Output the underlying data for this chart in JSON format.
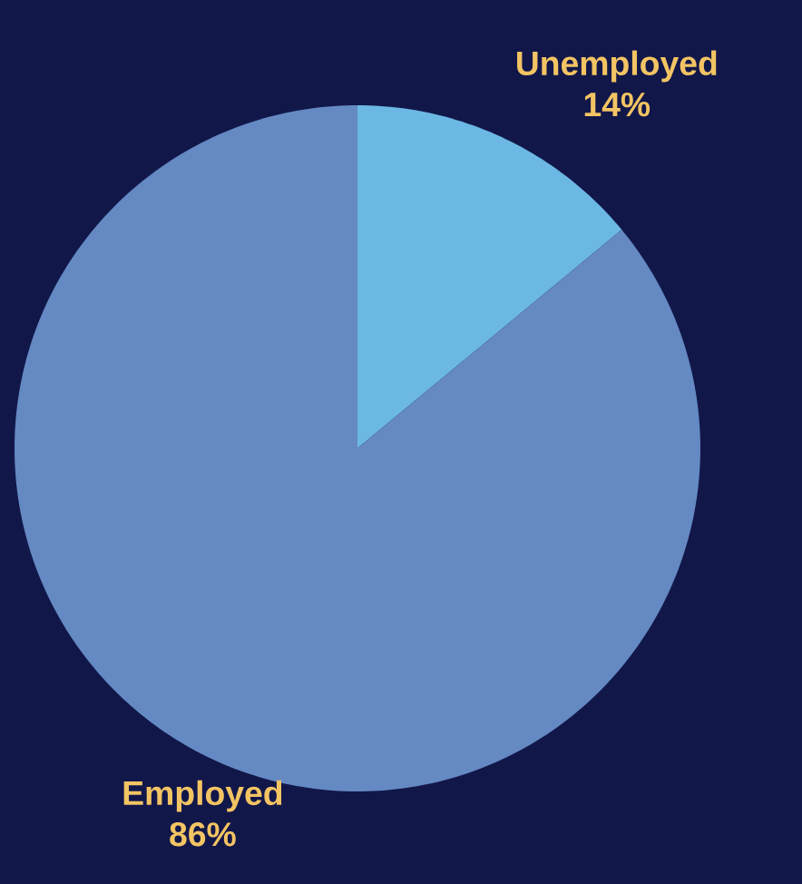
{
  "chart_data": {
    "type": "pie",
    "categories": [
      "Unemployed",
      "Employed"
    ],
    "values": [
      14,
      86
    ],
    "colors": [
      "#6cb8e4",
      "#6489c3"
    ],
    "value_labels": [
      "14%",
      "86%"
    ]
  }
}
